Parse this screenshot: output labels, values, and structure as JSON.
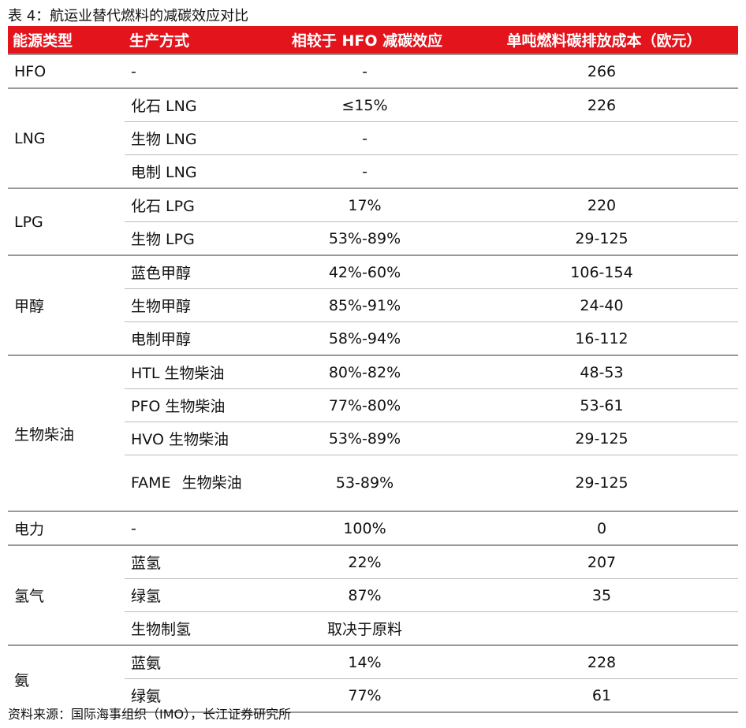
{
  "title": "表 4：航运业替代燃料的减碳效应对比",
  "table": {
    "header": [
      "能源类型",
      "生产方式",
      "相较于 HFO 减碳效应",
      "单吨燃料碳排放成本（欧元）"
    ],
    "groups": [
      {
        "type": "HFO",
        "items": [
          {
            "method": "-",
            "reduction": "-",
            "cost": "266"
          }
        ]
      },
      {
        "type": "LNG",
        "items": [
          {
            "method": "化石 LNG",
            "reduction": "≤15%",
            "cost": "226"
          },
          {
            "method": "生物 LNG",
            "reduction": "-"
          },
          {
            "method": "电制 LNG",
            "reduction": "-"
          }
        ]
      },
      {
        "type": "LPG",
        "items": [
          {
            "method": "化石 LPG",
            "reduction": "17%",
            "cost": "220"
          },
          {
            "method": "生物 LPG",
            "reduction": "53%-89%",
            "cost": "29-125"
          }
        ]
      },
      {
        "type": "甲醇",
        "items": [
          {
            "method": "蓝色甲醇",
            "reduction": "42%-60%",
            "cost": "106-154"
          },
          {
            "method": "生物甲醇",
            "reduction": "85%-91%",
            "cost": "24-40"
          },
          {
            "method": "电制甲醇",
            "reduction": "58%-94%",
            "cost": "16-112"
          }
        ]
      },
      {
        "type": "生物柴油",
        "items": [
          {
            "method": "HTL 生物柴油",
            "reduction": "80%-82%",
            "cost": "48-53"
          },
          {
            "method": "PFO 生物柴油",
            "reduction": "77%-80%",
            "cost": "53-61"
          },
          {
            "method": "HVO 生物柴油",
            "reduction": "53%-89%",
            "cost": "29-125"
          },
          {
            "method": "FAME 生物柴油",
            "reduction": "53-89%",
            "cost": "29-125"
          }
        ]
      },
      {
        "type": "电力",
        "items": [
          {
            "method": "-",
            "reduction": "100%",
            "cost": "0"
          }
        ]
      },
      {
        "type": "氢气",
        "items": [
          {
            "method": "蓝氢",
            "reduction": "22%",
            "cost": "207"
          },
          {
            "method": "绿氢",
            "reduction": "87%",
            "cost": "35"
          },
          {
            "method": "生物制氢",
            "reduction": "取决于原料"
          }
        ]
      },
      {
        "type": "氨",
        "items": [
          {
            "method": "蓝氨",
            "reduction": "14%",
            "cost": "228"
          },
          {
            "method": "绿氨",
            "reduction": "77%",
            "cost": "61"
          }
        ]
      }
    ]
  },
  "source": "资料来源：国际海事组织（IMO），长江证券研究所"
}
